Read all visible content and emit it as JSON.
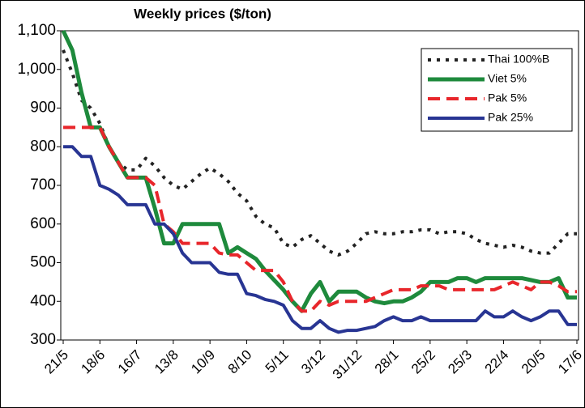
{
  "chart_data": {
    "type": "line",
    "title": "Weekly prices ($/ton)",
    "categories": [
      "21/5",
      null,
      null,
      null,
      "18/6",
      null,
      null,
      null,
      "16/7",
      null,
      null,
      null,
      "13/8",
      null,
      null,
      null,
      "10/9",
      null,
      null,
      null,
      "8/10",
      null,
      null,
      null,
      "5/11",
      null,
      null,
      null,
      "3/12",
      null,
      null,
      null,
      "31/12",
      null,
      null,
      null,
      "28/1",
      null,
      null,
      null,
      "25/2",
      null,
      null,
      null,
      "25/3",
      null,
      null,
      null,
      "22/4",
      null,
      null,
      null,
      "20/5",
      null,
      null,
      null,
      "17/6"
    ],
    "series": [
      {
        "name": "Thai 100%B",
        "color": "#222222",
        "values": [
          1050,
          990,
          920,
          900,
          860,
          800,
          760,
          740,
          740,
          770,
          750,
          720,
          700,
          690,
          710,
          730,
          745,
          730,
          710,
          680,
          660,
          620,
          600,
          590,
          550,
          540,
          560,
          570,
          550,
          530,
          520,
          530,
          550,
          575,
          580,
          575,
          575,
          580,
          580,
          585,
          585,
          575,
          580,
          580,
          575,
          560,
          550,
          545,
          540,
          545,
          540,
          530,
          525,
          525,
          550,
          575,
          575
        ]
      },
      {
        "name": "Viet 5%",
        "color": "#1e8a3c",
        "values": [
          1100,
          1050,
          940,
          850,
          850,
          800,
          760,
          720,
          720,
          720,
          640,
          550,
          550,
          600,
          600,
          600,
          600,
          600,
          525,
          540,
          525,
          510,
          480,
          455,
          430,
          400,
          375,
          420,
          450,
          400,
          425,
          425,
          425,
          410,
          400,
          395,
          400,
          400,
          410,
          425,
          450,
          450,
          450,
          460,
          460,
          450,
          460,
          460,
          460,
          460,
          460,
          455,
          450,
          450,
          460,
          410,
          410
        ]
      },
      {
        "name": "Pak 5%",
        "color": "#e8262b",
        "values": [
          850,
          850,
          850,
          850,
          850,
          800,
          760,
          720,
          720,
          720,
          700,
          600,
          580,
          550,
          550,
          550,
          550,
          525,
          520,
          520,
          500,
          480,
          480,
          480,
          450,
          400,
          375,
          375,
          400,
          390,
          400,
          400,
          400,
          400,
          410,
          420,
          430,
          430,
          430,
          440,
          440,
          440,
          430,
          430,
          430,
          430,
          430,
          430,
          440,
          450,
          440,
          430,
          450,
          450,
          440,
          425,
          425
        ]
      },
      {
        "name": "Pak 25%",
        "color": "#283593",
        "values": [
          800,
          800,
          775,
          775,
          700,
          690,
          675,
          650,
          650,
          650,
          600,
          600,
          575,
          525,
          500,
          500,
          500,
          475,
          470,
          470,
          420,
          415,
          405,
          400,
          390,
          350,
          330,
          330,
          350,
          330,
          320,
          325,
          325,
          330,
          335,
          350,
          360,
          350,
          350,
          360,
          350,
          350,
          350,
          350,
          350,
          350,
          375,
          360,
          360,
          375,
          360,
          350,
          360,
          375,
          375,
          340,
          340
        ]
      }
    ],
    "ylim": [
      300,
      1100
    ],
    "yticks": [
      300,
      400,
      500,
      600,
      700,
      800,
      900,
      {
        "value": 1000,
        "label": "1,000"
      },
      {
        "value": 1100,
        "label": "1,100"
      }
    ]
  }
}
